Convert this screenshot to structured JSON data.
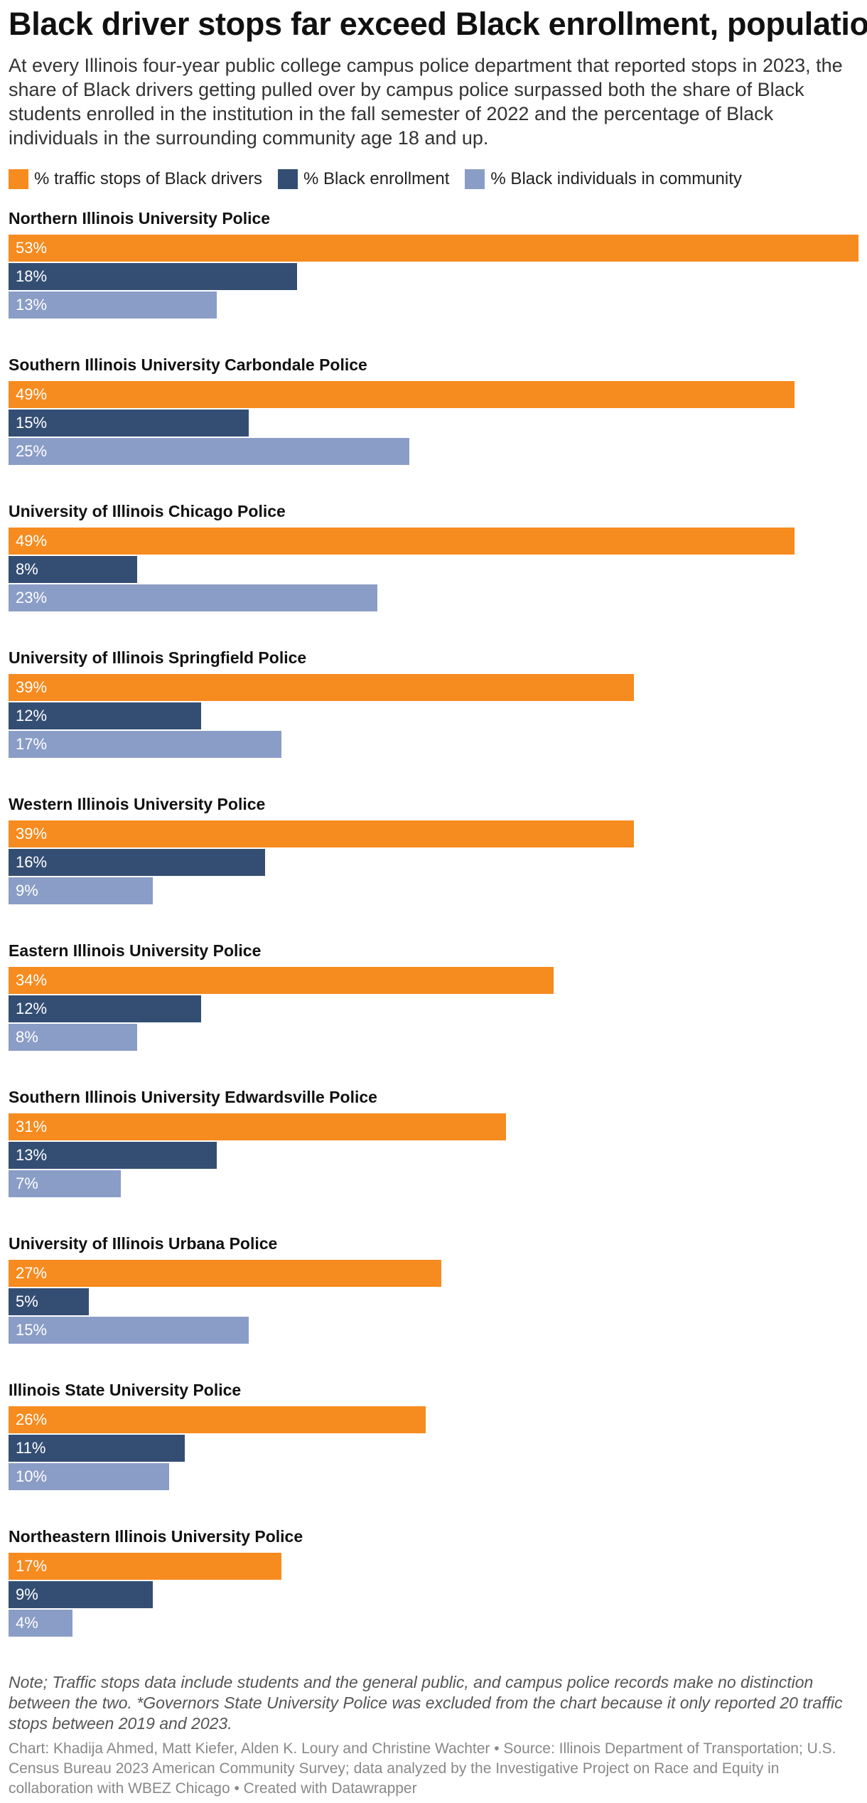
{
  "header": {
    "title": "Black driver stops far exceed Black enrollment, population",
    "subtitle": "At every Illinois four-year public college campus police department that reported stops in 2023, the share of Black drivers getting pulled over by campus police surpassed both the share of Black students enrolled in the institution in the fall semester of 2022 and the percentage of Black individuals in the surrounding community age 18 and up."
  },
  "footer": {
    "notes": "Note; Traffic stops data include students and the general public, and campus police records make no distinction between the two. *Governors State University Police was excluded from the chart because it only reported 20 traffic stops between 2019 and 2023.",
    "credit": "Chart: Khadija Ahmed, Matt Kiefer, Alden K. Loury and Christine Wachter • Source: Illinois Department of Transportation; U.S. Census Bureau 2023 American Community Survey; data analyzed by the Investigative Project on Race and Equity in collaboration with WBEZ Chicago • Created with Datawrapper"
  },
  "chart_data": {
    "type": "bar",
    "orientation": "horizontal",
    "legend_position": "top-left",
    "grid": false,
    "xlim": [
      0,
      53
    ],
    "value_suffix": "%",
    "categories": [
      "Northern Illinois University Police",
      "Southern Illinois University Carbondale Police",
      "University of Illinois Chicago Police",
      "University of Illinois Springfield Police",
      "Western Illinois University Police",
      "Eastern Illinois University Police",
      "Southern Illinois University Edwardsville Police",
      "University of Illinois Urbana Police",
      "Illinois State University Police",
      "Northeastern Illinois University Police"
    ],
    "series": [
      {
        "name": "% traffic stops of Black drivers",
        "color": "#f68b1f",
        "values": [
          53,
          49,
          49,
          39,
          39,
          34,
          31,
          27,
          26,
          17
        ]
      },
      {
        "name": "% Black enrollment",
        "color": "#344e73",
        "values": [
          18,
          15,
          8,
          12,
          16,
          12,
          13,
          5,
          11,
          9
        ]
      },
      {
        "name": "% Black individuals in community",
        "color": "#8a9dc6",
        "values": [
          13,
          25,
          23,
          17,
          9,
          8,
          7,
          15,
          10,
          4
        ]
      }
    ]
  }
}
